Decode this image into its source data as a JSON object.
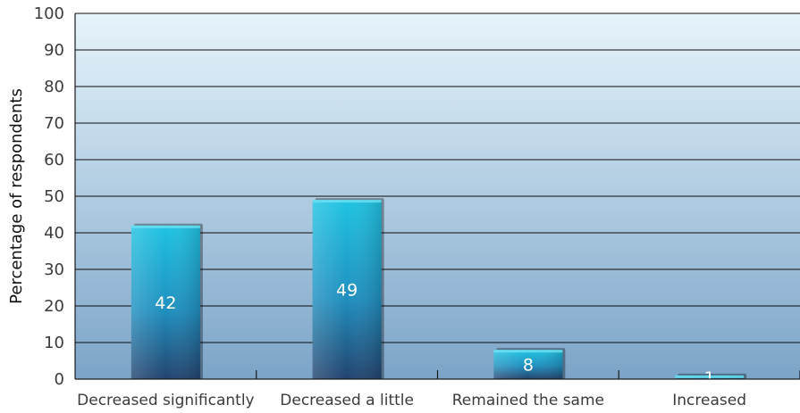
{
  "chart_data": {
    "type": "bar",
    "title": "",
    "xlabel": "",
    "ylabel": "Percentage of respondents",
    "categories": [
      "Decreased significantly",
      "Decreased a little",
      "Remained the same",
      "Increased"
    ],
    "values": [
      42,
      49,
      8,
      1
    ],
    "value_labels": [
      "42",
      "49",
      "8",
      "1"
    ],
    "ylim": [
      0,
      100
    ],
    "yticks": [
      0,
      10,
      20,
      30,
      40,
      50,
      60,
      70,
      80,
      90,
      100
    ],
    "ytick_labels": [
      "0",
      "10",
      "20",
      "30",
      "40",
      "50",
      "60",
      "70",
      "80",
      "90",
      "100"
    ],
    "grid": true,
    "legend": "none"
  },
  "colors": {
    "bar_top": "#1ec3e2",
    "bar_bottom": "#22436e",
    "plot_bg_top": "#e6f4fb",
    "plot_bg_bottom": "#7ba4c8",
    "gridline": "#0d0d0d",
    "text": "#3b3b3b"
  }
}
